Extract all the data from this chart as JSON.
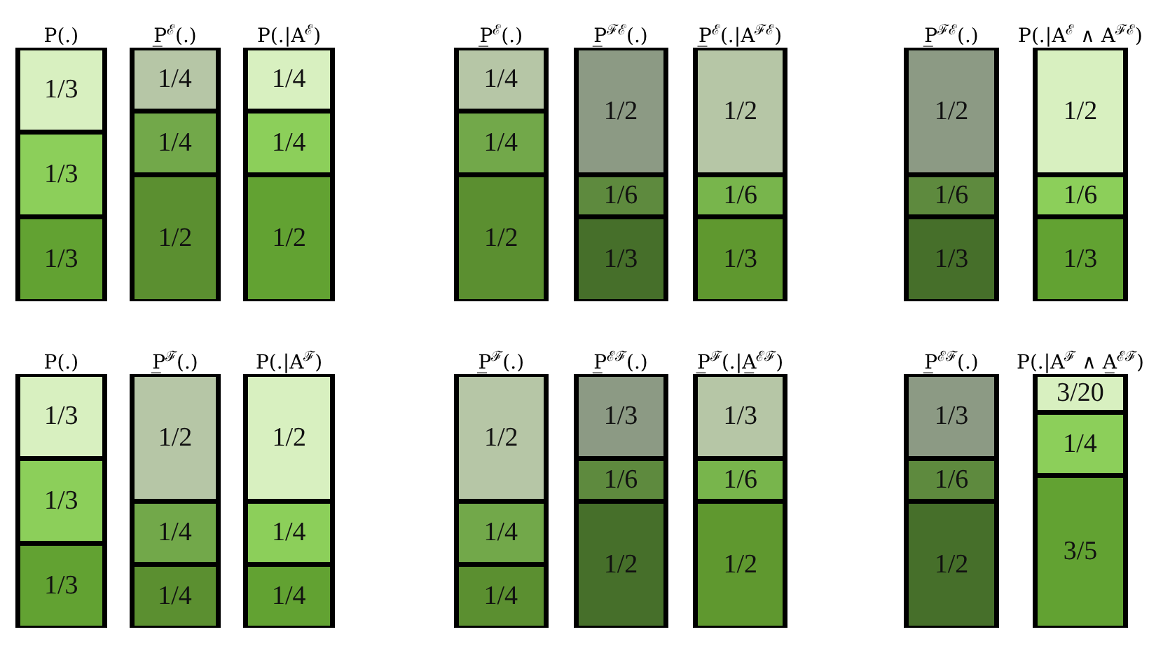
{
  "chart_data": [
    {
      "type": "bar",
      "stacked": true,
      "categories": [
        "P(.)",
        "P̲$^{ℰ}$(.)",
        "P(.|A$^{ℰ}$)"
      ],
      "series": [
        {
          "values": [
            0.3333,
            0.5,
            0.5
          ],
          "value_labels": [
            "1/3",
            "1/2",
            "1/2"
          ],
          "colors": [
            "#62a232",
            "#5b8f30",
            "#62a232"
          ]
        },
        {
          "values": [
            0.3333,
            0.25,
            0.25
          ],
          "value_labels": [
            "1/3",
            "1/4",
            "1/4"
          ],
          "colors": [
            "#8ccf5a",
            "#72a84a",
            "#8ccf5a"
          ]
        },
        {
          "values": [
            0.3333,
            0.25,
            0.25
          ],
          "value_labels": [
            "1/3",
            "1/4",
            "1/4"
          ],
          "colors": [
            "#d8f0c0",
            "#b6c6a6",
            "#d8f0c0"
          ]
        }
      ]
    },
    {
      "type": "bar",
      "stacked": true,
      "categories": [
        "P̲$^{ℰ}$(.)",
        "P̲$^{ℱℰ}$(.)",
        "P̲$^{ℰ}$(.|A$^{ℱℰ}$)"
      ],
      "series": [
        {
          "values": [
            0.5,
            0.3333,
            0.3333
          ],
          "value_labels": [
            "1/2",
            "1/3",
            "1/3"
          ],
          "colors": [
            "#5b8f30",
            "#466f2a",
            "#5f982f"
          ]
        },
        {
          "values": [
            0.25,
            0.1667,
            0.1667
          ],
          "value_labels": [
            "1/4",
            "1/6",
            "1/6"
          ],
          "colors": [
            "#72a84a",
            "#5e8a3e",
            "#78b54c"
          ]
        },
        {
          "values": [
            0.25,
            0.5,
            0.5
          ],
          "value_labels": [
            "1/4",
            "1/2",
            "1/2"
          ],
          "colors": [
            "#b6c6a6",
            "#8c9a84",
            "#b6c6a6"
          ]
        }
      ]
    },
    {
      "type": "bar",
      "stacked": true,
      "categories": [
        "P̲$^{ℱℰ}$(.)",
        "P(.|A$^{ℰ}$ ∧ A$^{ℱℰ}$)"
      ],
      "series": [
        {
          "values": [
            0.3333,
            0.3333
          ],
          "value_labels": [
            "1/3",
            "1/3"
          ],
          "colors": [
            "#466f2a",
            "#62a232"
          ]
        },
        {
          "values": [
            0.1667,
            0.1667
          ],
          "value_labels": [
            "1/6",
            "1/6"
          ],
          "colors": [
            "#5e8a3e",
            "#8ccf5a"
          ]
        },
        {
          "values": [
            0.5,
            0.5
          ],
          "value_labels": [
            "1/2",
            "1/2"
          ],
          "colors": [
            "#8c9a84",
            "#d8f0c0"
          ]
        }
      ]
    },
    {
      "type": "bar",
      "stacked": true,
      "categories": [
        "P(.)",
        "P̲$^{ℱ}$(.)",
        "P(.|A$^{ℱ}$)"
      ],
      "series": [
        {
          "values": [
            0.3333,
            0.25,
            0.25
          ],
          "value_labels": [
            "1/3",
            "1/4",
            "1/4"
          ],
          "colors": [
            "#62a232",
            "#5b8f30",
            "#62a232"
          ]
        },
        {
          "values": [
            0.3333,
            0.25,
            0.25
          ],
          "value_labels": [
            "1/3",
            "1/4",
            "1/4"
          ],
          "colors": [
            "#8ccf5a",
            "#72a84a",
            "#8ccf5a"
          ]
        },
        {
          "values": [
            0.3333,
            0.5,
            0.5
          ],
          "value_labels": [
            "1/3",
            "1/2",
            "1/2"
          ],
          "colors": [
            "#d8f0c0",
            "#b6c6a6",
            "#d8f0c0"
          ]
        }
      ]
    },
    {
      "type": "bar",
      "stacked": true,
      "categories": [
        "P̲$^{ℱ}$(.)",
        "P̲$^{ℰℱ}$(.)",
        "P̲$^{ℱ}$(.|A̲$^{ℰℱ}$)"
      ],
      "series": [
        {
          "values": [
            0.25,
            0.5,
            0.5
          ],
          "value_labels": [
            "1/4",
            "1/2",
            "1/2"
          ],
          "colors": [
            "#5b8f30",
            "#466f2a",
            "#5f982f"
          ]
        },
        {
          "values": [
            0.25,
            0.1667,
            0.1667
          ],
          "value_labels": [
            "1/4",
            "1/6",
            "1/6"
          ],
          "colors": [
            "#72a84a",
            "#5e8a3e",
            "#78b54c"
          ]
        },
        {
          "values": [
            0.5,
            0.3333,
            0.3333
          ],
          "value_labels": [
            "1/2",
            "1/3",
            "1/3"
          ],
          "colors": [
            "#b6c6a6",
            "#8c9a84",
            "#b6c6a6"
          ]
        }
      ]
    },
    {
      "type": "bar",
      "stacked": true,
      "categories": [
        "P̲$^{ℰℱ}$(.)",
        "P(.|A$^{ℱ}$ ∧ A̲$^{ℰℱ}$)"
      ],
      "series": [
        {
          "values": [
            0.5,
            0.6
          ],
          "value_labels": [
            "1/2",
            "3/5"
          ],
          "colors": [
            "#466f2a",
            "#62a232"
          ]
        },
        {
          "values": [
            0.1667,
            0.25
          ],
          "value_labels": [
            "1/6",
            "1/4"
          ],
          "colors": [
            "#5e8a3e",
            "#8ccf5a"
          ]
        },
        {
          "values": [
            0.3333,
            0.15
          ],
          "value_labels": [
            "1/3",
            "3/20"
          ],
          "colors": [
            "#8c9a84",
            "#d8f0c0"
          ]
        }
      ]
    }
  ]
}
